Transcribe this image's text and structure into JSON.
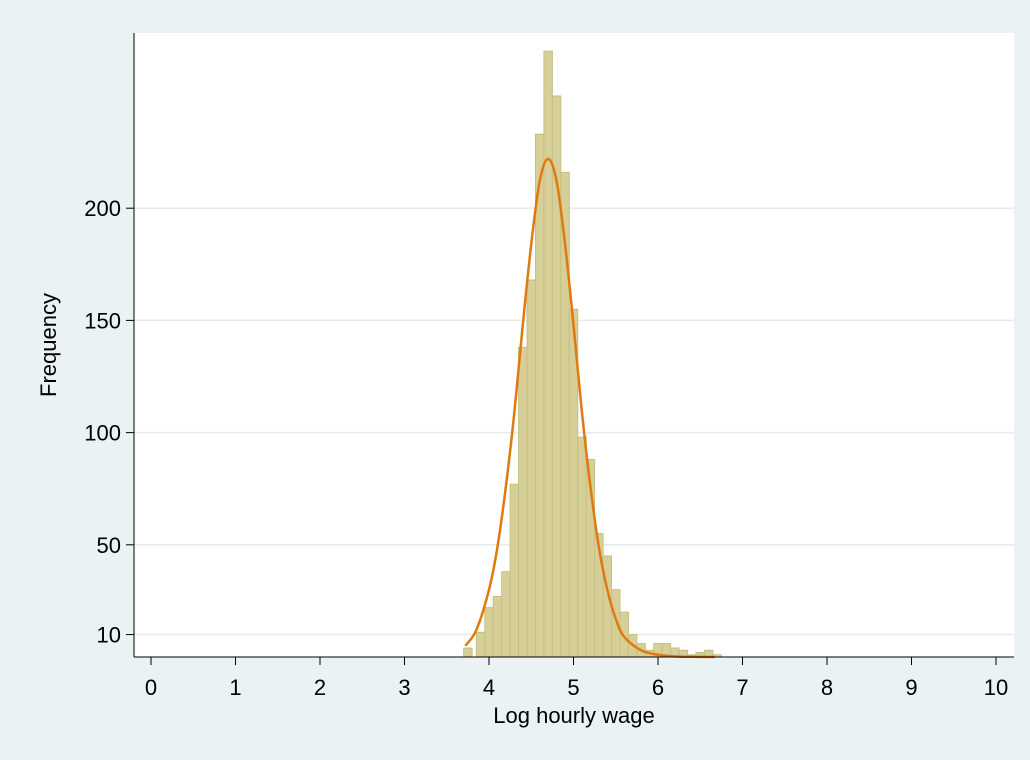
{
  "chart_data": {
    "type": "bar",
    "title": "",
    "xlabel": "Log hourly wage",
    "ylabel": "Frequency",
    "xlim": [
      -0.2,
      10.2
    ],
    "ylim": [
      0,
      271
    ],
    "xticks": [
      0,
      1,
      2,
      3,
      4,
      5,
      6,
      7,
      8,
      9,
      10
    ],
    "yticks": [
      10,
      50,
      100,
      150,
      200
    ],
    "grid": "horizontal",
    "legend": "none",
    "colors": {
      "background": "#eaf2f3",
      "plot_background": "#ffffff",
      "bar_fill": "#d6cf98",
      "bar_stroke": "#c8bf82",
      "curve": "#e07a0f",
      "grid": "#e6ebeb",
      "axis": "#000000"
    },
    "bin_width": 0.1,
    "series": [
      {
        "type": "histogram",
        "bins": [
          {
            "x0": 3.7,
            "count": 4
          },
          {
            "x0": 3.8,
            "count": 0
          },
          {
            "x0": 3.85,
            "count": 11
          },
          {
            "x0": 3.95,
            "count": 22
          },
          {
            "x0": 4.05,
            "count": 27
          },
          {
            "x0": 4.15,
            "count": 38
          },
          {
            "x0": 4.25,
            "count": 77
          },
          {
            "x0": 4.35,
            "count": 138
          },
          {
            "x0": 4.45,
            "count": 168
          },
          {
            "x0": 4.55,
            "count": 233
          },
          {
            "x0": 4.65,
            "count": 270
          },
          {
            "x0": 4.75,
            "count": 250
          },
          {
            "x0": 4.85,
            "count": 216
          },
          {
            "x0": 4.95,
            "count": 155
          },
          {
            "x0": 5.05,
            "count": 98
          },
          {
            "x0": 5.15,
            "count": 88
          },
          {
            "x0": 5.25,
            "count": 55
          },
          {
            "x0": 5.35,
            "count": 45
          },
          {
            "x0": 5.45,
            "count": 30
          },
          {
            "x0": 5.55,
            "count": 20
          },
          {
            "x0": 5.65,
            "count": 10
          },
          {
            "x0": 5.75,
            "count": 6
          },
          {
            "x0": 5.85,
            "count": 3
          },
          {
            "x0": 5.95,
            "count": 6
          },
          {
            "x0": 6.05,
            "count": 6
          },
          {
            "x0": 6.15,
            "count": 4
          },
          {
            "x0": 6.25,
            "count": 3
          },
          {
            "x0": 6.35,
            "count": 1
          },
          {
            "x0": 6.45,
            "count": 2
          },
          {
            "x0": 6.55,
            "count": 3
          },
          {
            "x0": 6.65,
            "count": 1
          }
        ]
      },
      {
        "type": "line",
        "x": [
          3.72,
          3.85,
          4.0,
          4.1,
          4.2,
          4.3,
          4.4,
          4.5,
          4.6,
          4.7,
          4.8,
          4.9,
          5.0,
          5.1,
          5.2,
          5.3,
          5.4,
          5.5,
          5.6,
          5.8,
          6.0,
          6.2,
          6.4,
          6.67
        ],
        "y": [
          5,
          12,
          30,
          49,
          76,
          109,
          148,
          184,
          212,
          222,
          212,
          184,
          148,
          109,
          76,
          49,
          30,
          17,
          9,
          3,
          1,
          0.3,
          0.1,
          0
        ]
      }
    ]
  }
}
